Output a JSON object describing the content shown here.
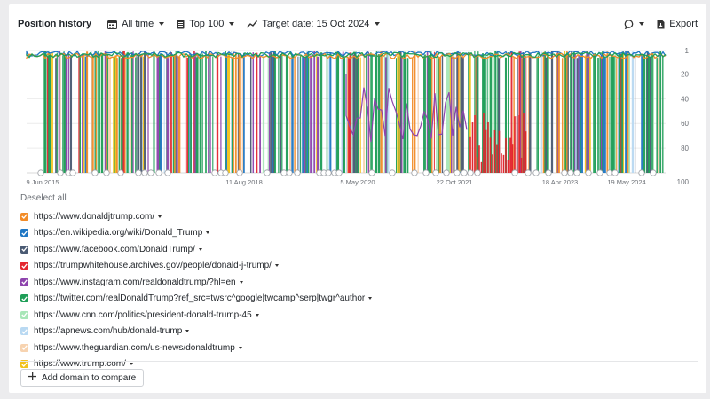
{
  "toolbar": {
    "title": "Position history",
    "period": "All time",
    "top": "Top 100",
    "target_date": "Target date: 15 Oct 2024",
    "export": "Export"
  },
  "chart_data": {
    "type": "line",
    "x_tick_labels": [
      "9 Jun 2015",
      "11 Aug 2018",
      "5 May 2020",
      "22 Oct 2021",
      "18 Apr 2023",
      "19 May 2024"
    ],
    "y_tick_labels": [
      "1",
      "20",
      "40",
      "60",
      "80",
      "100"
    ],
    "y_axis": "position (inverted, 1 at top)",
    "ylim": [
      100,
      1
    ],
    "grid": true,
    "series": [
      {
        "name": "https://www.donaldjtrump.com/",
        "color": "#f28c28"
      },
      {
        "name": "https://en.wikipedia.org/wiki/Donald_Trump",
        "color": "#1f77c4"
      },
      {
        "name": "https://www.facebook.com/DonaldTrump/",
        "color": "#4a5a73"
      },
      {
        "name": "https://trumpwhitehouse.archives.gov/people/donald-j-trump/",
        "color": "#e3262f"
      },
      {
        "name": "https://www.instagram.com/realdonaldtrump/?hl=en",
        "color": "#8e44ad"
      },
      {
        "name": "https://twitter.com/realDonaldTrump?ref_src=twsrc^google|twcamp^serp|twgr^author",
        "color": "#1e9e57"
      },
      {
        "name": "https://www.cnn.com/politics/president-donald-trump-45",
        "color": "#a8e6b8"
      },
      {
        "name": "https://apnews.com/hub/donald-trump",
        "color": "#b9d9f2"
      },
      {
        "name": "https://www.theguardian.com/us-news/donaldtrump",
        "color": "#f7d3b0"
      },
      {
        "name": "https://www.trump.com/",
        "color": "#f2c21b"
      }
    ]
  },
  "legend": {
    "deselect_all": "Deselect all"
  },
  "footer": {
    "add_domain": "Add domain to compare"
  }
}
